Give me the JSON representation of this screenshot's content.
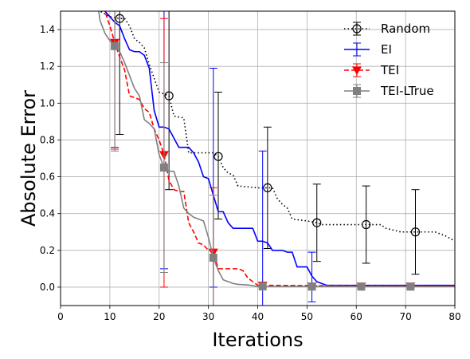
{
  "chart_data": {
    "type": "line",
    "xlabel": "Iterations",
    "ylabel": "Absolute Error",
    "xlim": [
      0,
      80
    ],
    "ylim": [
      -0.1,
      1.5
    ],
    "xticks": [
      0,
      10,
      20,
      30,
      40,
      50,
      60,
      70,
      80
    ],
    "yticks": [
      0.0,
      0.2,
      0.4,
      0.6,
      0.8,
      1.0,
      1.2,
      1.4
    ],
    "grid": true,
    "legend_position": "top-right",
    "series": [
      {
        "name": "Random",
        "color": "#000000",
        "linestyle": "dotted",
        "marker": "open-circle",
        "line": [
          [
            7,
            1.52
          ],
          [
            8,
            1.5
          ],
          [
            10,
            1.47
          ],
          [
            12,
            1.46
          ],
          [
            13,
            1.46
          ],
          [
            14,
            1.42
          ],
          [
            15,
            1.35
          ],
          [
            16,
            1.33
          ],
          [
            17,
            1.3
          ],
          [
            18,
            1.21
          ],
          [
            20,
            1.06
          ],
          [
            22,
            1.04
          ],
          [
            23,
            0.93
          ],
          [
            25,
            0.92
          ],
          [
            26,
            0.73
          ],
          [
            28,
            0.73
          ],
          [
            31,
            0.73
          ],
          [
            32,
            0.71
          ],
          [
            33,
            0.65
          ],
          [
            34,
            0.62
          ],
          [
            35,
            0.61
          ],
          [
            36,
            0.55
          ],
          [
            40,
            0.54
          ],
          [
            43,
            0.54
          ],
          [
            44,
            0.48
          ],
          [
            45,
            0.45
          ],
          [
            46,
            0.43
          ],
          [
            47,
            0.37
          ],
          [
            50,
            0.36
          ],
          [
            52,
            0.35
          ],
          [
            53,
            0.34
          ],
          [
            62,
            0.34
          ],
          [
            65,
            0.34
          ],
          [
            66,
            0.32
          ],
          [
            69,
            0.3
          ],
          [
            76,
            0.3
          ],
          [
            77,
            0.29
          ],
          [
            78,
            0.28
          ],
          [
            80,
            0.25
          ]
        ],
        "markers": [
          {
            "x": 12,
            "y": 1.46,
            "lo": 0.83,
            "hi": 2.1
          },
          {
            "x": 22,
            "y": 1.04,
            "lo": 0.53,
            "hi": 1.55
          },
          {
            "x": 32,
            "y": 0.71,
            "lo": 0.37,
            "hi": 1.06
          },
          {
            "x": 42,
            "y": 0.54,
            "lo": 0.21,
            "hi": 0.87
          },
          {
            "x": 52,
            "y": 0.35,
            "lo": 0.14,
            "hi": 0.56
          },
          {
            "x": 62,
            "y": 0.34,
            "lo": 0.13,
            "hi": 0.55
          },
          {
            "x": 72,
            "y": 0.3,
            "lo": 0.07,
            "hi": 0.53
          }
        ]
      },
      {
        "name": "EI",
        "color": "#0000ff",
        "linestyle": "solid",
        "marker": "none",
        "line": [
          [
            7,
            1.56
          ],
          [
            8,
            1.52
          ],
          [
            9,
            1.5
          ],
          [
            10,
            1.47
          ],
          [
            11,
            1.44
          ],
          [
            12,
            1.42
          ],
          [
            13,
            1.35
          ],
          [
            14,
            1.29
          ],
          [
            15,
            1.28
          ],
          [
            16,
            1.28
          ],
          [
            17,
            1.26
          ],
          [
            18,
            1.19
          ],
          [
            19,
            0.96
          ],
          [
            20,
            0.87
          ],
          [
            21,
            0.87
          ],
          [
            22,
            0.86
          ],
          [
            23,
            0.81
          ],
          [
            24,
            0.76
          ],
          [
            26,
            0.76
          ],
          [
            27,
            0.73
          ],
          [
            28,
            0.68
          ],
          [
            29,
            0.6
          ],
          [
            30,
            0.59
          ],
          [
            31,
            0.5
          ],
          [
            32,
            0.41
          ],
          [
            33,
            0.41
          ],
          [
            34,
            0.35
          ],
          [
            35,
            0.32
          ],
          [
            39,
            0.32
          ],
          [
            40,
            0.25
          ],
          [
            41,
            0.25
          ],
          [
            42,
            0.24
          ],
          [
            43,
            0.2
          ],
          [
            45,
            0.2
          ],
          [
            46,
            0.19
          ],
          [
            47,
            0.19
          ],
          [
            48,
            0.11
          ],
          [
            50,
            0.11
          ],
          [
            51,
            0.06
          ],
          [
            52,
            0.03
          ],
          [
            53,
            0.02
          ],
          [
            54,
            0.01
          ],
          [
            80,
            0.01
          ]
        ],
        "markers": [
          {
            "x": 11,
            "y": 1.44,
            "lo": 0.76,
            "hi": 2.1
          },
          {
            "x": 21,
            "y": 0.87,
            "lo": 0.1,
            "hi": 1.66
          },
          {
            "x": 31,
            "y": 0.5,
            "lo": 0.0,
            "hi": 1.19
          },
          {
            "x": 41,
            "y": 0.25,
            "lo": -0.25,
            "hi": 0.74
          },
          {
            "x": 51,
            "y": 0.06,
            "lo": -0.08,
            "hi": 0.19
          }
        ]
      },
      {
        "name": "TEI",
        "color": "#ff0000",
        "linestyle": "dashed",
        "marker": "triangle-down",
        "line": [
          [
            8,
            1.56
          ],
          [
            9,
            1.5
          ],
          [
            10,
            1.42
          ],
          [
            11,
            1.33
          ],
          [
            12,
            1.25
          ],
          [
            13,
            1.18
          ],
          [
            14,
            1.04
          ],
          [
            15,
            1.03
          ],
          [
            16,
            1.02
          ],
          [
            17,
            0.97
          ],
          [
            18,
            0.95
          ],
          [
            19,
            0.86
          ],
          [
            20,
            0.8
          ],
          [
            21,
            0.72
          ],
          [
            22,
            0.58
          ],
          [
            23,
            0.53
          ],
          [
            24,
            0.52
          ],
          [
            25,
            0.52
          ],
          [
            26,
            0.35
          ],
          [
            27,
            0.3
          ],
          [
            28,
            0.24
          ],
          [
            29,
            0.23
          ],
          [
            30,
            0.2
          ],
          [
            31,
            0.19
          ],
          [
            32,
            0.1
          ],
          [
            36,
            0.1
          ],
          [
            37,
            0.09
          ],
          [
            38,
            0.05
          ],
          [
            40,
            0.01
          ],
          [
            80,
            0.005
          ]
        ],
        "markers": [
          {
            "x": 11,
            "y": 1.33,
            "lo": 0.75,
            "hi": 2.1
          },
          {
            "x": 21,
            "y": 0.72,
            "lo": 0.0,
            "hi": 1.46
          },
          {
            "x": 31,
            "y": 0.19,
            "lo": -0.17,
            "hi": 0.54
          },
          {
            "x": 41,
            "y": 0.01,
            "lo": 0.0,
            "hi": 0.02
          },
          {
            "x": 51,
            "y": 0.005,
            "lo": 0.0,
            "hi": 0.01
          },
          {
            "x": 61,
            "y": 0.005,
            "lo": 0.0,
            "hi": 0.01
          },
          {
            "x": 71,
            "y": 0.005,
            "lo": 0.0,
            "hi": 0.01
          }
        ]
      },
      {
        "name": "TEI-LTrue",
        "color": "#808080",
        "linestyle": "solid",
        "marker": "square",
        "line": [
          [
            7,
            1.65
          ],
          [
            8,
            1.45
          ],
          [
            9,
            1.38
          ],
          [
            10,
            1.34
          ],
          [
            11,
            1.31
          ],
          [
            12,
            1.28
          ],
          [
            13,
            1.22
          ],
          [
            14,
            1.15
          ],
          [
            15,
            1.08
          ],
          [
            16,
            1.04
          ],
          [
            17,
            0.91
          ],
          [
            18,
            0.89
          ],
          [
            19,
            0.86
          ],
          [
            20,
            0.72
          ],
          [
            21,
            0.65
          ],
          [
            22,
            0.63
          ],
          [
            23,
            0.63
          ],
          [
            24,
            0.55
          ],
          [
            25,
            0.43
          ],
          [
            26,
            0.4
          ],
          [
            27,
            0.38
          ],
          [
            28,
            0.37
          ],
          [
            29,
            0.36
          ],
          [
            30,
            0.27
          ],
          [
            31,
            0.16
          ],
          [
            32,
            0.09
          ],
          [
            33,
            0.04
          ],
          [
            34,
            0.03
          ],
          [
            35,
            0.02
          ],
          [
            36,
            0.015
          ],
          [
            38,
            0.012
          ],
          [
            40,
            0.004
          ],
          [
            80,
            0.003
          ]
        ],
        "markers": [
          {
            "x": 11,
            "y": 1.31,
            "lo": 0.74,
            "hi": 2.1
          },
          {
            "x": 21,
            "y": 0.65,
            "lo": 0.08,
            "hi": 1.22
          },
          {
            "x": 31,
            "y": 0.16,
            "lo": -0.27,
            "hi": 0.5
          },
          {
            "x": 41,
            "y": 0.004,
            "lo": 0.0,
            "hi": 0.01
          },
          {
            "x": 51,
            "y": 0.003,
            "lo": 0.0,
            "hi": 0.01
          },
          {
            "x": 61,
            "y": 0.003,
            "lo": 0.0,
            "hi": 0.01
          },
          {
            "x": 71,
            "y": 0.003,
            "lo": 0.0,
            "hi": 0.01
          }
        ]
      }
    ]
  }
}
